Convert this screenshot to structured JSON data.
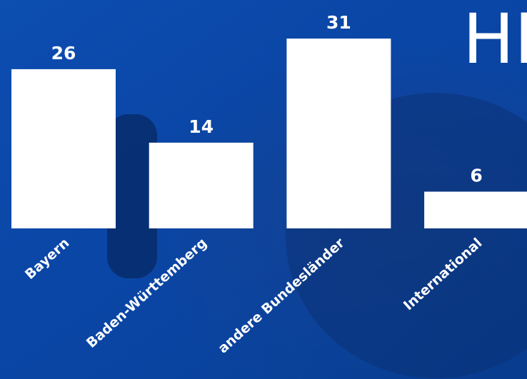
{
  "chart_data": {
    "type": "bar",
    "title": "HE",
    "categories": [
      "Bayern",
      "Baden-Württemberg",
      "andere Bundesländer",
      "International"
    ],
    "values": [
      26,
      14,
      31,
      6
    ],
    "color": "#ffffff"
  }
}
